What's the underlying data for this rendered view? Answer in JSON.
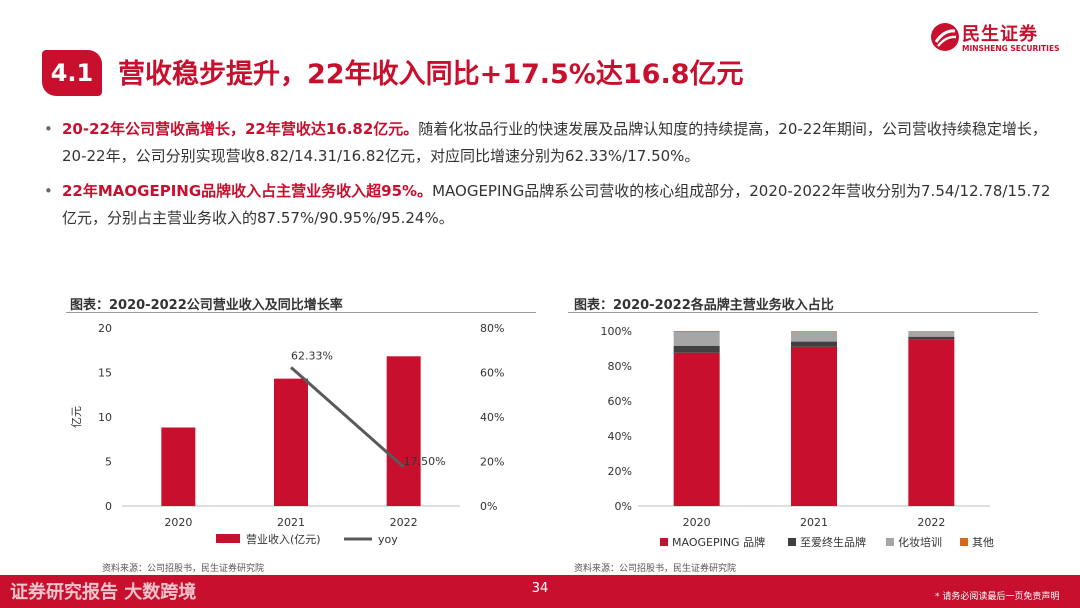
{
  "brand": {
    "name_cn": "民生证券",
    "name_en": "MINSHENG SECURITIES",
    "color": "#c8102e"
  },
  "section": {
    "number": "4.1",
    "title": "营收稳步提升，22年收入同比+17.5%达16.8亿元"
  },
  "bullets": [
    {
      "bold": "20-22年公司营收高增长，22年营收达16.82亿元。",
      "text": "随着化妆品行业的快速发展及品牌认知度的持续提高，20-22年期间，公司营收持续稳定增长，20-22年，公司分别实现营收8.82/14.31/16.82亿元，对应同比增速分别为62.33%/17.50%。"
    },
    {
      "bold": "22年MAOGEPING品牌收入占主营业务收入超95%。",
      "text": "MAOGEPING品牌系公司营收的核心组成部分，2020-2022年营收分别为7.54/12.78/15.72亿元，分别占主营业务收入的87.57%/90.95%/95.24%。"
    }
  ],
  "chart_left": {
    "caption": "图表：2020-2022公司营业收入及同比增长率",
    "source": "资料来源：公司招股书，民生证券研究院"
  },
  "chart_right": {
    "caption": "图表：2020-2022各品牌主营业务收入占比",
    "source": "资料来源：公司招股书，民生证券研究院"
  },
  "chart_data": [
    {
      "type": "bar",
      "categories": [
        "2020",
        "2021",
        "2022"
      ],
      "series": [
        {
          "name": "营业收入(亿元)",
          "kind": "bar",
          "axis": "left",
          "color": "#c8102e",
          "values": [
            8.82,
            14.31,
            16.82
          ]
        },
        {
          "name": "yoy",
          "kind": "line",
          "axis": "right",
          "color": "#595959",
          "values": [
            null,
            62.33,
            17.5
          ],
          "labels": [
            "",
            "62.33%",
            "17.50%"
          ]
        }
      ],
      "ylabel": "亿元",
      "ylim": [
        0,
        20
      ],
      "yticks": [
        0,
        5,
        10,
        15,
        20
      ],
      "y2lim": [
        0,
        80
      ],
      "y2ticks": [
        "0%",
        "20%",
        "40%",
        "60%",
        "80%"
      ],
      "legend": "bottom",
      "grid": false
    },
    {
      "type": "bar",
      "stacked": true,
      "categories": [
        "2020",
        "2021",
        "2022"
      ],
      "series": [
        {
          "name": "MAOGEPING 品牌",
          "color": "#c8102e",
          "values": [
            87.57,
            90.95,
            95.24
          ]
        },
        {
          "name": "至爱终生品牌",
          "color": "#404040",
          "values": [
            4.0,
            3.0,
            1.5
          ]
        },
        {
          "name": "化妆培训",
          "color": "#a6a6a6",
          "values": [
            7.93,
            5.85,
            3.16
          ]
        },
        {
          "name": "其他",
          "color": "#d2691e",
          "values": [
            0.5,
            0.2,
            0.1
          ]
        }
      ],
      "ylim": [
        0,
        100
      ],
      "yticks": [
        "0%",
        "20%",
        "40%",
        "60%",
        "80%",
        "100%"
      ],
      "legend": "bottom",
      "grid": false
    }
  ],
  "footer": {
    "page": "34",
    "watermark": "证券研究报告 大数跨境",
    "disclaimer": "* 请务必阅读最后一页免责声明"
  }
}
